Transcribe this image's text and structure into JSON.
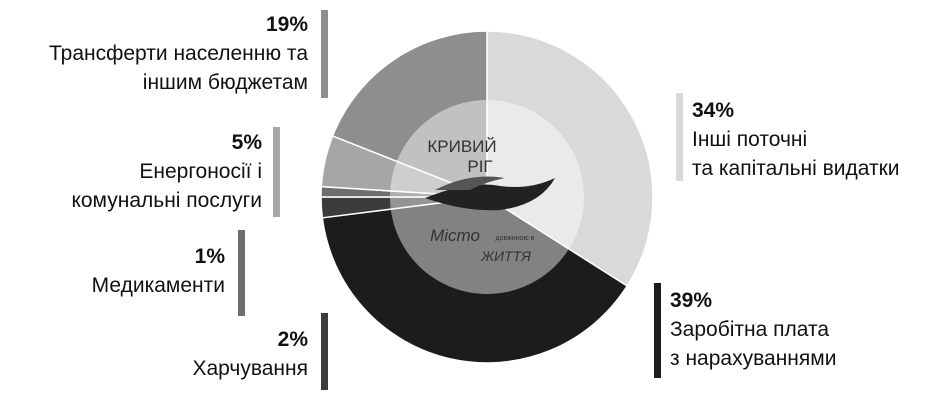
{
  "chart_data": {
    "type": "pie",
    "title": "",
    "categories": [
      "Інші поточні та капітальні видатки",
      "Заробітна плата з нарахуваннями",
      "Харчування",
      "Медикаменти",
      "Енергоносії і комунальні послуги",
      "Трансферти населенню та іншим бюджетам"
    ],
    "values": [
      34,
      39,
      2,
      1,
      5,
      19
    ],
    "colors": [
      "#d9d9d9",
      "#1c1c1c",
      "#3c3c3c",
      "#6e6e6e",
      "#a6a6a6",
      "#8e8e8e"
    ],
    "labels": [
      {
        "pct": "34%",
        "lines": [
          "Інші поточні",
          "та капітальні видатки"
        ]
      },
      {
        "pct": "39%",
        "lines": [
          "Заробітна плата",
          "з нарахуваннями"
        ]
      },
      {
        "pct": "2%",
        "lines": [
          "Харчування"
        ]
      },
      {
        "pct": "1%",
        "lines": [
          "Медикаменти"
        ]
      },
      {
        "pct": "5%",
        "lines": [
          "Енергоносії і",
          "комунальні послуги"
        ]
      },
      {
        "pct": "19%",
        "lines": [
          "Трансферти населенню та",
          "іншим бюджетам"
        ]
      }
    ]
  },
  "logo": {
    "line1": "КРИВИЙ",
    "line2": "РІГ",
    "line3a": "Місто",
    "line3b": "довжиною в",
    "line4": "ЖИТТЯ"
  }
}
